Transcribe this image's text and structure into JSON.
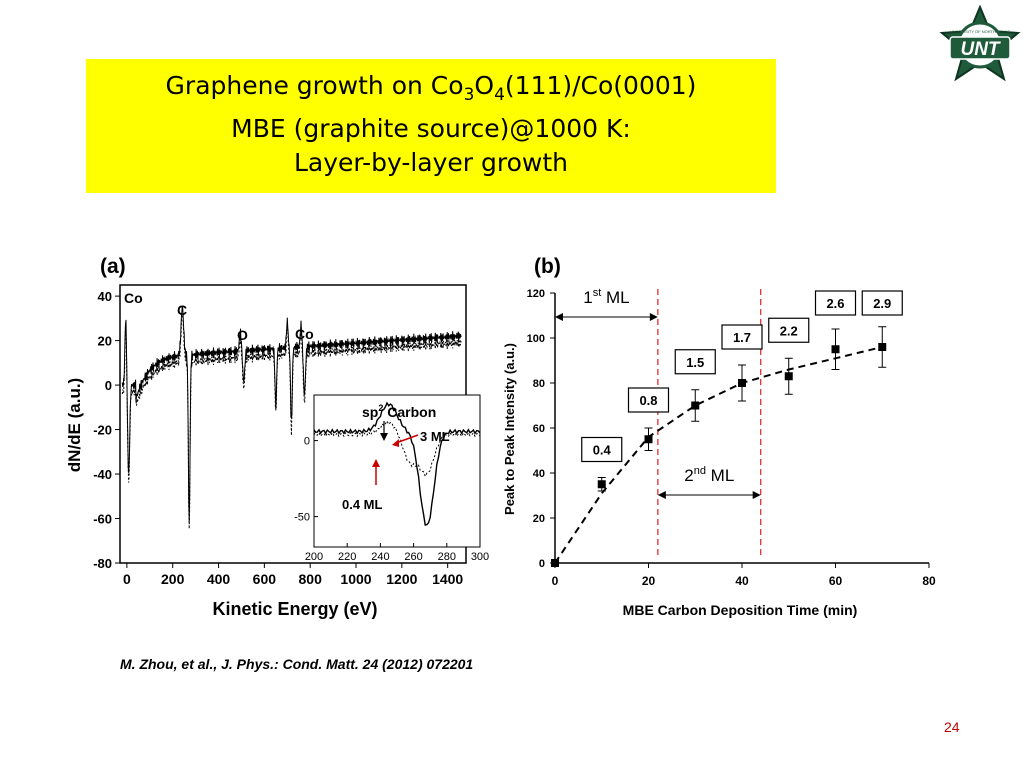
{
  "slide": {
    "title_line1_a": "Graphene growth on Co",
    "title_line1_sub1": "3",
    "title_line1_b": "O",
    "title_line1_sub2": "4",
    "title_line1_c": "(111)/Co(0001)",
    "title_line2": "MBE (graphite source)@1000 K:",
    "title_line3": "Layer-by-layer growth",
    "citation": "M. Zhou, et al., J. Phys.: Cond. Matt. 24 (2012) 072201",
    "slide_number": "24",
    "logo_text": "UNT",
    "logo_ring_text": "UNIVERSITY OF NORTH TEXAS",
    "colors": {
      "title_bg": "#ffff00",
      "accent": "#c00000",
      "logo_green": "#1f5a3a"
    }
  },
  "chart_data": [
    {
      "type": "line",
      "panel_label": "(a)",
      "xlabel": "Kinetic Energy (eV)",
      "ylabel": "dN/dE (a.u.)",
      "xlim": [
        -30,
        1480
      ],
      "ylim": [
        -80,
        45
      ],
      "xticks": [
        0,
        200,
        400,
        600,
        800,
        1000,
        1200,
        1400
      ],
      "yticks": [
        -80,
        -60,
        -40,
        -20,
        0,
        20,
        40
      ],
      "peak_labels": [
        "Co",
        "C",
        "O",
        "Co"
      ],
      "grid": false,
      "inset": {
        "title": "sp",
        "title_sup": "2",
        "title_rest": " Carbon",
        "xlim": [
          200,
          300
        ],
        "ylim": [
          -70,
          30
        ],
        "xticks": [
          200,
          220,
          240,
          260,
          280,
          300
        ],
        "yticks": [
          -50,
          0
        ],
        "series_labels": [
          "3 ML",
          "0.4 ML"
        ]
      }
    },
    {
      "type": "line",
      "panel_label": "(b)",
      "xlabel": "MBE Carbon Deposition  Time (min)",
      "ylabel": "Peak to Peak Intensity (a.u.)",
      "xlim": [
        0,
        80
      ],
      "ylim": [
        0,
        120
      ],
      "xticks": [
        0,
        20,
        40,
        60,
        80
      ],
      "yticks": [
        0,
        20,
        40,
        60,
        80,
        100,
        120
      ],
      "grid": false,
      "x": [
        0,
        10,
        20,
        30,
        40,
        50,
        60,
        70
      ],
      "y": [
        0,
        35,
        55,
        70,
        80,
        83,
        95,
        96
      ],
      "yerr": [
        0,
        3,
        5,
        7,
        8,
        8,
        9,
        9
      ],
      "fit_x": [
        0,
        10,
        20,
        30,
        40,
        50,
        60,
        70
      ],
      "fit_y": [
        0,
        31,
        56,
        70,
        80,
        86,
        91,
        96
      ],
      "boxes": [
        {
          "label": "0.4",
          "x": 10
        },
        {
          "label": "0.8",
          "x": 20
        },
        {
          "label": "1.5",
          "x": 30
        },
        {
          "label": "1.7",
          "x": 40
        },
        {
          "label": "2.2",
          "x": 50
        },
        {
          "label": "2.6",
          "x": 60
        },
        {
          "label": "2.9",
          "x": 70
        }
      ],
      "vlines": [
        22,
        44
      ],
      "annotations": [
        {
          "text": "1",
          "sup": "st",
          "rest": " ML",
          "from": 0,
          "to": 22
        },
        {
          "text": "2",
          "sup": "nd",
          "rest": "  ML",
          "from": 22,
          "to": 44
        }
      ]
    }
  ]
}
